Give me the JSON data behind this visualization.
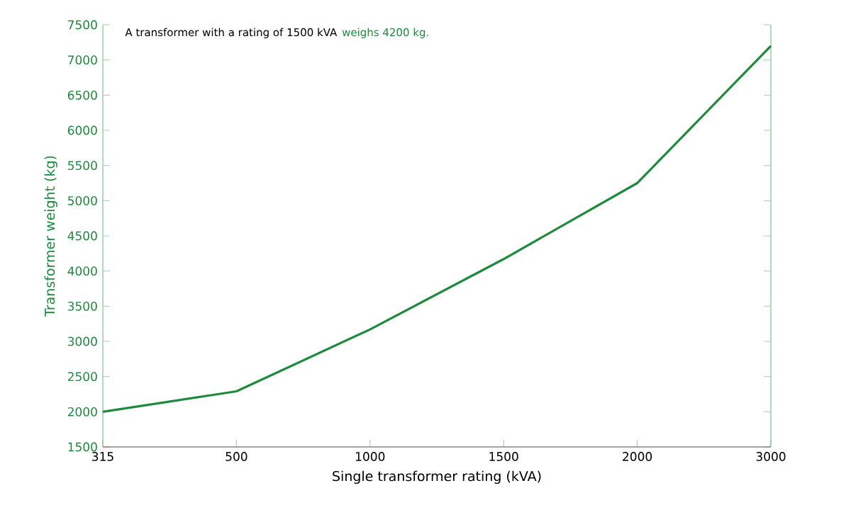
{
  "chart_data": {
    "type": "line",
    "xlabel": "Single transformer rating (kVA)",
    "ylabel": "Transformer weight (kg)",
    "categories": [
      "315",
      "500",
      "1000",
      "1500",
      "2000",
      "3000"
    ],
    "series": [
      {
        "color": "#1e8a3c",
        "values": [
          2000,
          2290,
          3170,
          4170,
          5250,
          7200
        ]
      }
    ],
    "ylim": [
      1500,
      7500
    ],
    "yticks": [
      1500,
      2000,
      2500,
      3000,
      3500,
      4000,
      4500,
      5000,
      5500,
      6000,
      6500,
      7000,
      7500
    ],
    "annotations": [
      "A transformer with a rating of 1500 kVA",
      "weighs 4200 kg."
    ]
  }
}
